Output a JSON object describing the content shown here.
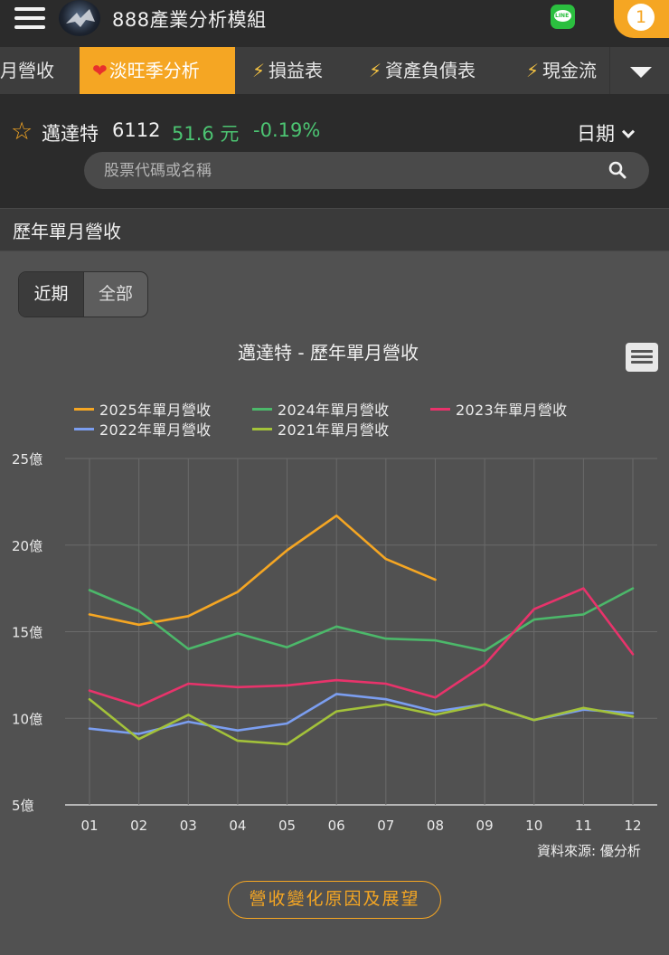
{
  "header": {
    "title": "888產業分析模組",
    "notification_count": "1"
  },
  "tabs": [
    {
      "label": "月營收",
      "icon": "none",
      "active": false
    },
    {
      "label": "淡旺季分析",
      "icon": "heart",
      "active": true
    },
    {
      "label": "損益表",
      "icon": "bolt",
      "active": false
    },
    {
      "label": "資產負債表",
      "icon": "bolt",
      "active": false
    },
    {
      "label": "現金流",
      "icon": "bolt",
      "active": false
    }
  ],
  "stock": {
    "name": "邁達特",
    "code": "6112",
    "price": "51.6 元",
    "change": "-0.19%",
    "date_label": "日期"
  },
  "search": {
    "placeholder": "股票代碼或名稱"
  },
  "section": {
    "title": "歷年單月營收"
  },
  "range_buttons": {
    "recent": "近期",
    "all": "全部"
  },
  "source_note": "資料來源: 優分析",
  "cta_label": "營收變化原因及展望",
  "colors": {
    "accent": "#f5a623",
    "up_down_green": "#4cc472",
    "s2025": "#f5a623",
    "s2024": "#4cb86a",
    "s2023": "#e8336b",
    "s2022": "#7b9ef0",
    "s2021": "#a3c23a"
  },
  "chart_data": {
    "type": "line",
    "title": "邁達特 - 歷年單月營收",
    "categories": [
      "01",
      "02",
      "03",
      "04",
      "05",
      "06",
      "07",
      "08",
      "09",
      "10",
      "11",
      "12"
    ],
    "y_ticks": [
      "25億",
      "20億",
      "15億",
      "10億",
      "5億"
    ],
    "ylim": [
      5,
      25
    ],
    "y_tick_values": [
      25,
      20,
      15,
      10,
      5
    ],
    "grid": true,
    "legend_position": "top",
    "series": [
      {
        "name": "2025年單月營收",
        "color": "#f5a623",
        "values": [
          16.0,
          15.4,
          15.9,
          17.3,
          19.7,
          21.7,
          19.2,
          18.0,
          null,
          null,
          null,
          null
        ]
      },
      {
        "name": "2024年單月營收",
        "color": "#4cb86a",
        "values": [
          17.4,
          16.2,
          14.0,
          14.9,
          14.1,
          15.3,
          14.6,
          14.5,
          13.9,
          15.7,
          16.0,
          17.5
        ]
      },
      {
        "name": "2023年單月營收",
        "color": "#e8336b",
        "values": [
          11.6,
          10.7,
          12.0,
          11.8,
          11.9,
          12.2,
          12.0,
          11.2,
          13.1,
          16.3,
          17.5,
          13.7
        ]
      },
      {
        "name": "2022年單月營收",
        "color": "#7b9ef0",
        "values": [
          9.4,
          9.1,
          9.8,
          9.3,
          9.7,
          11.4,
          11.1,
          10.4,
          10.8,
          9.9,
          10.5,
          10.3
        ]
      },
      {
        "name": "2021年單月營收",
        "color": "#a3c23a",
        "values": [
          11.1,
          8.8,
          10.2,
          8.7,
          8.5,
          10.4,
          10.8,
          10.2,
          10.8,
          9.9,
          10.6,
          10.1
        ]
      }
    ]
  }
}
